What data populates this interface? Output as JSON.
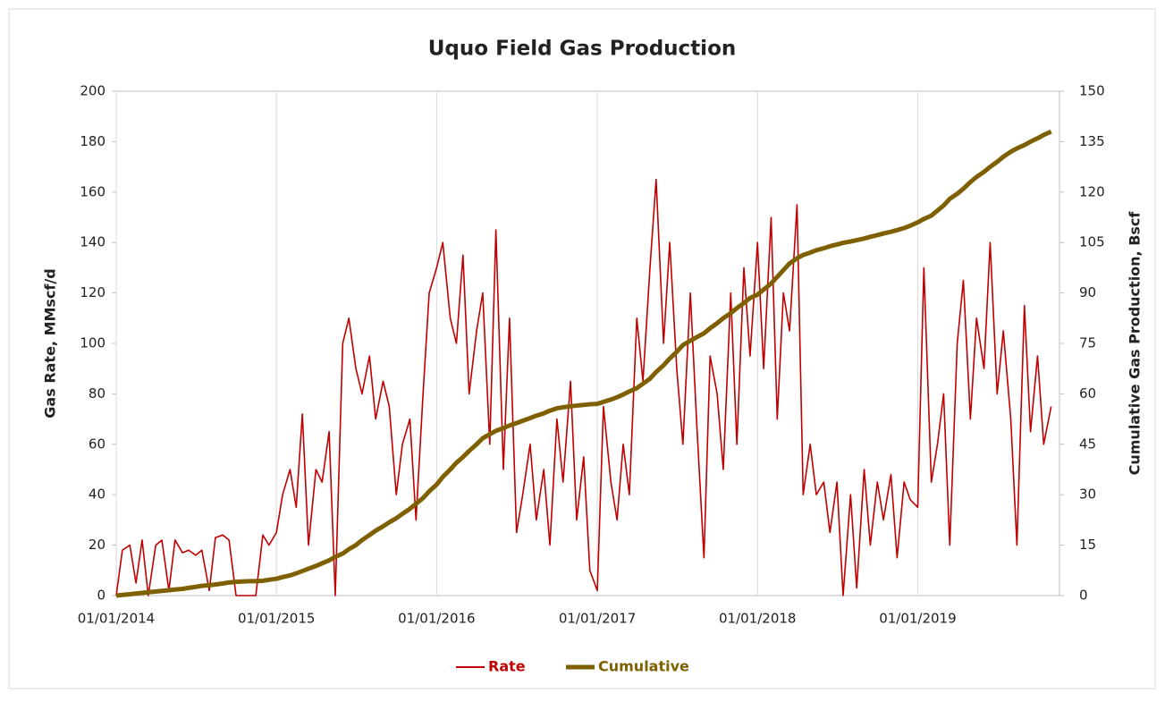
{
  "chart_data": {
    "type": "line",
    "title": "Uquo Field Gas Production",
    "y_label": "Gas Rate, MMscf/d",
    "y2_label": "Cumulative Gas Production, Bscf",
    "x": [
      "2014-01-01",
      "2014-01-15",
      "2014-02-01",
      "2014-02-15",
      "2014-03-01",
      "2014-03-15",
      "2014-04-01",
      "2014-04-15",
      "2014-05-01",
      "2014-05-15",
      "2014-06-01",
      "2014-06-15",
      "2014-07-01",
      "2014-07-15",
      "2014-08-01",
      "2014-08-15",
      "2014-09-01",
      "2014-09-15",
      "2014-10-01",
      "2014-10-15",
      "2014-11-01",
      "2014-11-15",
      "2014-12-01",
      "2014-12-15",
      "2015-01-01",
      "2015-01-15",
      "2015-02-01",
      "2015-02-15",
      "2015-03-01",
      "2015-03-15",
      "2015-04-01",
      "2015-04-15",
      "2015-05-01",
      "2015-05-15",
      "2015-06-01",
      "2015-06-15",
      "2015-07-01",
      "2015-07-15",
      "2015-08-01",
      "2015-08-15",
      "2015-09-01",
      "2015-09-15",
      "2015-10-01",
      "2015-10-15",
      "2015-11-01",
      "2015-11-15",
      "2015-12-01",
      "2015-12-15",
      "2016-01-01",
      "2016-01-15",
      "2016-02-01",
      "2016-02-15",
      "2016-03-01",
      "2016-03-15",
      "2016-04-01",
      "2016-04-15",
      "2016-05-01",
      "2016-05-15",
      "2016-06-01",
      "2016-06-15",
      "2016-07-01",
      "2016-07-15",
      "2016-08-01",
      "2016-08-15",
      "2016-09-01",
      "2016-09-15",
      "2016-10-01",
      "2016-10-15",
      "2016-11-01",
      "2016-11-15",
      "2016-12-01",
      "2016-12-15",
      "2017-01-01",
      "2017-01-15",
      "2017-02-01",
      "2017-02-15",
      "2017-03-01",
      "2017-03-15",
      "2017-04-01",
      "2017-04-15",
      "2017-05-01",
      "2017-05-15",
      "2017-06-01",
      "2017-06-15",
      "2017-07-01",
      "2017-07-15",
      "2017-08-01",
      "2017-08-15",
      "2017-09-01",
      "2017-09-15",
      "2017-10-01",
      "2017-10-15",
      "2017-11-01",
      "2017-11-15",
      "2017-12-01",
      "2017-12-15",
      "2018-01-01",
      "2018-01-15",
      "2018-02-01",
      "2018-02-15",
      "2018-03-01",
      "2018-03-15",
      "2018-04-01",
      "2018-04-15",
      "2018-05-01",
      "2018-05-15",
      "2018-06-01",
      "2018-06-15",
      "2018-07-01",
      "2018-07-15",
      "2018-08-01",
      "2018-08-15",
      "2018-09-01",
      "2018-09-15",
      "2018-10-01",
      "2018-10-15",
      "2018-11-01",
      "2018-11-15",
      "2018-12-01",
      "2018-12-15",
      "2019-01-01",
      "2019-01-15",
      "2019-02-01",
      "2019-02-15",
      "2019-03-01",
      "2019-03-15",
      "2019-04-01",
      "2019-04-15",
      "2019-05-01",
      "2019-05-15",
      "2019-06-01",
      "2019-06-15",
      "2019-07-01",
      "2019-07-15",
      "2019-08-01",
      "2019-08-15",
      "2019-09-01",
      "2019-09-15",
      "2019-10-01",
      "2019-10-15",
      "2019-11-01"
    ],
    "series": [
      {
        "name": "Rate",
        "color": "#c00000",
        "axis": "y",
        "values": [
          0,
          18,
          20,
          5,
          22,
          0,
          20,
          22,
          2,
          22,
          17,
          18,
          16,
          18,
          2,
          23,
          24,
          22,
          0,
          0,
          0,
          0,
          24,
          20,
          25,
          40,
          50,
          35,
          72,
          20,
          50,
          45,
          65,
          0,
          100,
          110,
          90,
          80,
          95,
          70,
          85,
          75,
          40,
          60,
          70,
          30,
          80,
          120,
          130,
          140,
          110,
          100,
          135,
          80,
          105,
          120,
          60,
          145,
          50,
          110,
          25,
          40,
          60,
          30,
          50,
          20,
          70,
          45,
          85,
          30,
          55,
          10,
          2,
          75,
          45,
          30,
          60,
          40,
          110,
          85,
          130,
          165,
          100,
          140,
          90,
          60,
          120,
          70,
          15,
          95,
          80,
          50,
          120,
          60,
          130,
          95,
          140,
          90,
          150,
          70,
          120,
          105,
          155,
          40,
          60,
          40,
          45,
          25,
          45,
          0,
          40,
          3,
          50,
          20,
          45,
          30,
          48,
          15,
          45,
          38,
          35,
          130,
          45,
          60,
          80,
          20,
          100,
          125,
          70,
          110,
          90,
          140,
          80,
          105,
          70,
          20,
          115,
          65,
          95,
          60,
          75
        ]
      },
      {
        "name": "Cumulative",
        "color": "#7f6000",
        "axis": "y2",
        "values": [
          0,
          0.2,
          0.4,
          0.6,
          0.8,
          1.0,
          1.2,
          1.4,
          1.6,
          1.8,
          2.0,
          2.3,
          2.6,
          2.9,
          3.1,
          3.3,
          3.6,
          3.9,
          4.1,
          4.2,
          4.3,
          4.3,
          4.4,
          4.7,
          5.0,
          5.5,
          6.0,
          6.6,
          7.3,
          8.0,
          8.8,
          9.6,
          10.5,
          11.5,
          12.5,
          13.8,
          15.0,
          16.5,
          18.0,
          19.3,
          20.6,
          21.8,
          23.0,
          24.3,
          25.8,
          27.3,
          29.0,
          31.0,
          33.0,
          35.3,
          37.5,
          39.5,
          41.2,
          43.0,
          45.0,
          46.8,
          48.0,
          49.0,
          49.8,
          50.6,
          51.3,
          52.0,
          52.8,
          53.5,
          54.2,
          55.0,
          55.7,
          56.0,
          56.3,
          56.5,
          56.7,
          56.9,
          57.0,
          57.6,
          58.3,
          59.0,
          59.8,
          60.7,
          61.7,
          63.0,
          64.5,
          66.5,
          68.5,
          70.5,
          72.5,
          74.5,
          75.8,
          76.8,
          78.0,
          79.5,
          81.0,
          82.5,
          84.0,
          85.5,
          87.0,
          88.5,
          89.5,
          91.0,
          92.8,
          94.8,
          96.8,
          98.8,
          100.3,
          101.3,
          102.0,
          102.7,
          103.3,
          103.9,
          104.4,
          104.9,
          105.3,
          105.7,
          106.2,
          106.7,
          107.2,
          107.7,
          108.2,
          108.7,
          109.3,
          110.0,
          111.0,
          112.0,
          113.0,
          114.5,
          116.0,
          118.0,
          119.5,
          121.0,
          123.0,
          124.5,
          126.0,
          127.5,
          129.0,
          130.5,
          132.0,
          133.0,
          134.0,
          135.0,
          136.0,
          137.0,
          138.0
        ]
      }
    ],
    "xlim": [
      "2014-01-01",
      "2019-11-20"
    ],
    "xticks": [
      {
        "value": "2014-01-01",
        "label": "01/01/2014"
      },
      {
        "value": "2015-01-01",
        "label": "01/01/2015"
      },
      {
        "value": "2016-01-01",
        "label": "01/01/2016"
      },
      {
        "value": "2017-01-01",
        "label": "01/01/2017"
      },
      {
        "value": "2018-01-01",
        "label": "01/01/2018"
      },
      {
        "value": "2019-01-01",
        "label": "01/01/2019"
      }
    ],
    "ylim": [
      0,
      200
    ],
    "yticks": [
      0,
      20,
      40,
      60,
      80,
      100,
      120,
      140,
      160,
      180,
      200
    ],
    "y2lim": [
      0,
      150
    ],
    "y2ticks": [
      0,
      15,
      30,
      45,
      60,
      75,
      90,
      105,
      120,
      135,
      150
    ],
    "grid": "x",
    "legend": "bottom"
  }
}
